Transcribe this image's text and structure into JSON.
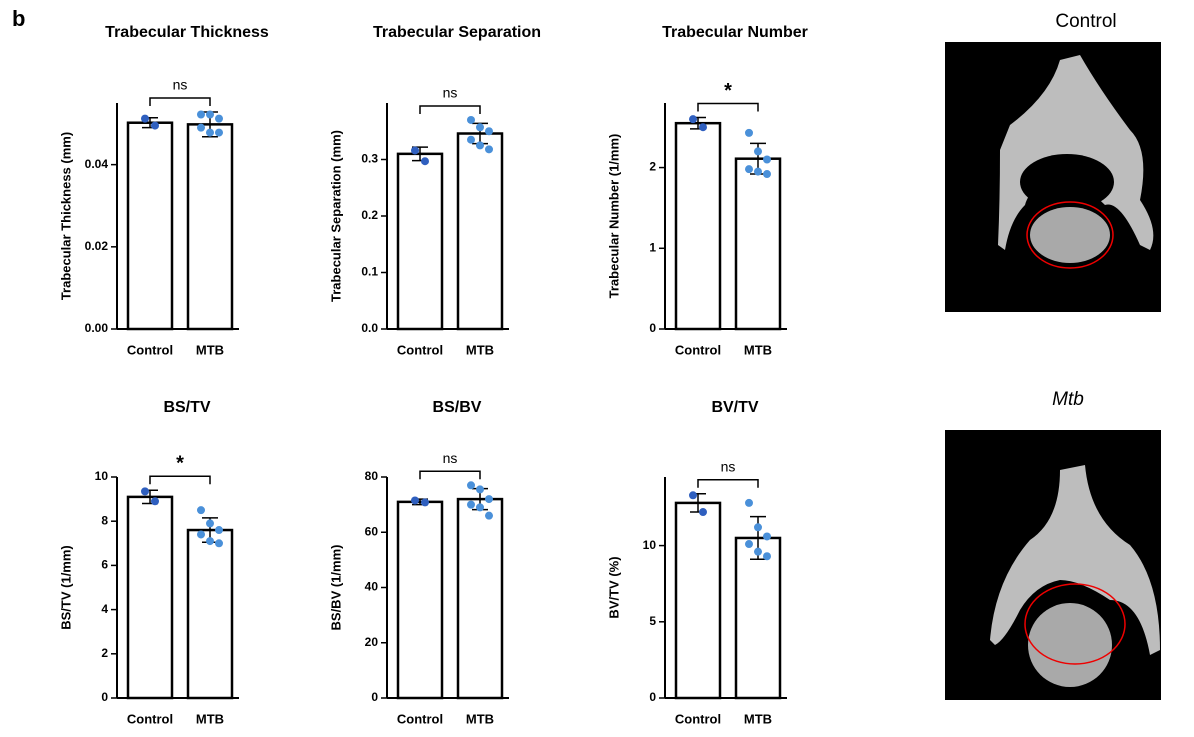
{
  "panel_label": "b",
  "images": [
    {
      "label": "Control"
    },
    {
      "label": "Mtb"
    }
  ],
  "chart_data": [
    {
      "type": "bar",
      "title": "Trabecular Thickness",
      "y_label": "Trabecular Thickness (mm)",
      "significance": "ns",
      "categories": [
        "Control",
        "MTB"
      ],
      "values": [
        0.0502,
        0.0498
      ],
      "errors": [
        0.0012,
        0.003
      ],
      "points": [
        [
          0.0512,
          0.0495
        ],
        [
          0.0522,
          0.0522,
          0.0512,
          0.049,
          0.0478,
          0.0478
        ]
      ],
      "colors": [
        "#2f5fbf",
        "#4a90d9"
      ],
      "ylim": [
        0,
        0.055
      ],
      "yticks": [
        {
          "value": 0,
          "label": "0.00"
        },
        0.02,
        0.04
      ]
    },
    {
      "type": "bar",
      "title": "Trabecular Separation",
      "y_label": "Trabecular Separation (mm)",
      "significance": "ns",
      "categories": [
        "Control",
        "MTB"
      ],
      "values": [
        0.31,
        0.346
      ],
      "errors": [
        0.012,
        0.018
      ],
      "points": [
        [
          0.316,
          0.297
        ],
        [
          0.37,
          0.357,
          0.35,
          0.335,
          0.325,
          0.318
        ]
      ],
      "colors": [
        "#2f5fbf",
        "#4a90d9"
      ],
      "ylim": [
        0,
        0.4
      ],
      "yticks": [
        {
          "value": 0,
          "label": "0.0"
        },
        0.1,
        0.2,
        0.3
      ]
    },
    {
      "type": "bar",
      "title": "Trabecular Number",
      "y_label": "Trabecular Number (1/mm)",
      "significance": "*",
      "categories": [
        "Control",
        "MTB"
      ],
      "values": [
        2.55,
        2.11
      ],
      "errors": [
        0.07,
        0.19
      ],
      "points": [
        [
          2.6,
          2.5
        ],
        [
          2.43,
          2.2,
          2.1,
          1.98,
          1.95,
          1.92
        ]
      ],
      "colors": [
        "#2f5fbf",
        "#4a90d9"
      ],
      "ylim": [
        0,
        2.8
      ],
      "yticks": [
        0,
        1,
        2
      ]
    },
    {
      "type": "bar",
      "title": "BS/TV",
      "y_label": "BS/TV (1/mm)",
      "significance": "*",
      "categories": [
        "Control",
        "MTB"
      ],
      "values": [
        9.1,
        7.6
      ],
      "errors": [
        0.3,
        0.55
      ],
      "points": [
        [
          9.35,
          8.9
        ],
        [
          8.5,
          7.9,
          7.6,
          7.4,
          7.1,
          7.0
        ]
      ],
      "colors": [
        "#2f5fbf",
        "#4a90d9"
      ],
      "ylim": [
        0,
        10
      ],
      "yticks": [
        0,
        2,
        4,
        6,
        8,
        10
      ]
    },
    {
      "type": "bar",
      "title": "BS/BV",
      "y_label": "BS/BV (1/mm)",
      "significance": "ns",
      "categories": [
        "Control",
        "MTB"
      ],
      "values": [
        71,
        72
      ],
      "errors": [
        1,
        3.8
      ],
      "points": [
        [
          71.5,
          70.8
        ],
        [
          77,
          75.5,
          72,
          70,
          69,
          66
        ]
      ],
      "colors": [
        "#2f5fbf",
        "#4a90d9"
      ],
      "ylim": [
        0,
        80
      ],
      "yticks": [
        0,
        20,
        40,
        60,
        80
      ]
    },
    {
      "type": "bar",
      "title": "BV/TV",
      "y_label": "BV/TV (%)",
      "significance": "ns",
      "categories": [
        "Control",
        "MTB"
      ],
      "values": [
        12.8,
        10.5
      ],
      "errors": [
        0.6,
        1.4
      ],
      "points": [
        [
          13.3,
          12.2
        ],
        [
          12.8,
          11.2,
          10.6,
          10.1,
          9.6,
          9.3
        ]
      ],
      "colors": [
        "#2f5fbf",
        "#4a90d9"
      ],
      "ylim": [
        0,
        14.5
      ],
      "yticks": [
        0,
        5,
        10
      ]
    }
  ]
}
